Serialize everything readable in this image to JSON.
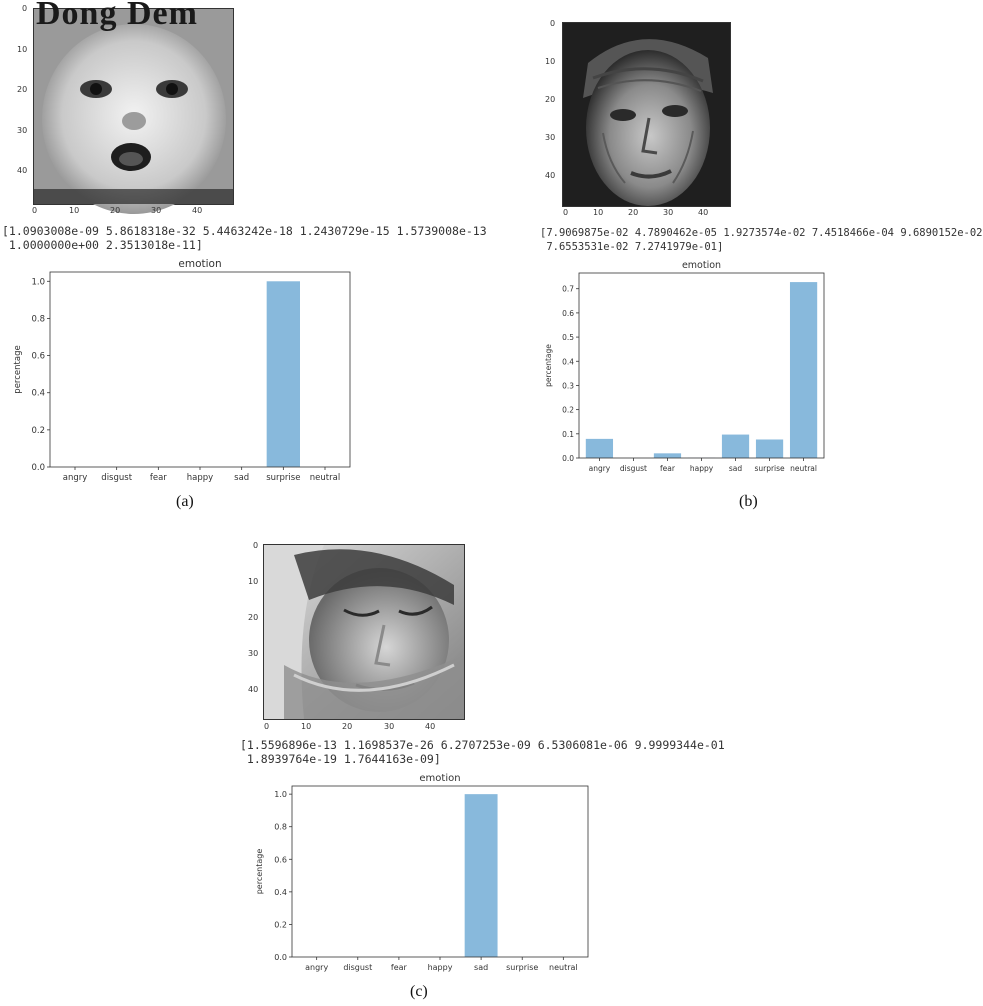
{
  "panels": [
    {
      "caption": "(a)",
      "image_watermark": "Dong Dem",
      "image_x_ticks": [
        "0",
        "10",
        "20",
        "30",
        "40"
      ],
      "image_y_ticks": [
        "0",
        "10",
        "20",
        "30",
        "40"
      ],
      "probabilities_text": [
        "[1.0903008e-09 5.8618318e-32 5.4463242e-18 1.2430729e-15 1.5739008e-13",
        " 1.0000000e+00 2.3513018e-11]"
      ]
    },
    {
      "caption": "(b)",
      "image_x_ticks": [
        "0",
        "10",
        "20",
        "30",
        "40"
      ],
      "image_y_ticks": [
        "0",
        "10",
        "20",
        "30",
        "40"
      ],
      "probabilities_text": [
        "[7.9069875e-02 4.7890462e-05 1.9273574e-02 7.4518466e-04 9.6890152e-02",
        " 7.6553531e-02 7.2741979e-01]"
      ]
    },
    {
      "caption": "(c)",
      "image_x_ticks": [
        "0",
        "10",
        "20",
        "30",
        "40"
      ],
      "image_y_ticks": [
        "0",
        "10",
        "20",
        "30",
        "40"
      ],
      "probabilities_text": [
        "[1.5596896e-13 1.1698537e-26 6.2707253e-09 6.5306081e-06 9.9999344e-01",
        " 1.8939764e-19 1.7644163e-09]"
      ]
    }
  ],
  "chart_data": [
    {
      "type": "bar",
      "title": "emotion",
      "ylabel": "percentage",
      "xlabel": "",
      "categories": [
        "angry",
        "disgust",
        "fear",
        "happy",
        "sad",
        "surprise",
        "neutral"
      ],
      "values": [
        1.0903008e-09,
        5.8618318e-32,
        5.4463242e-18,
        1.2430729e-15,
        1.5739008e-13,
        1.0,
        2.3513018e-11
      ],
      "ylim": [
        0,
        1.05
      ],
      "yticks": [
        "0.0",
        "0.2",
        "0.4",
        "0.6",
        "0.8",
        "1.0"
      ],
      "bar_color": "#88b9dc"
    },
    {
      "type": "bar",
      "title": "emotion",
      "ylabel": "percentage",
      "xlabel": "",
      "categories": [
        "angry",
        "disgust",
        "fear",
        "happy",
        "sad",
        "surprise",
        "neutral"
      ],
      "values": [
        0.079069875,
        4.7890462e-05,
        0.019273574,
        0.00074518466,
        0.096890152,
        0.076553531,
        0.72741979
      ],
      "ylim": [
        0,
        0.765
      ],
      "yticks": [
        "0.0",
        "0.1",
        "0.2",
        "0.3",
        "0.4",
        "0.5",
        "0.6",
        "0.7"
      ],
      "bar_color": "#88b9dc"
    },
    {
      "type": "bar",
      "title": "emotion",
      "ylabel": "percentage",
      "xlabel": "",
      "categories": [
        "angry",
        "disgust",
        "fear",
        "happy",
        "sad",
        "surprise",
        "neutral"
      ],
      "values": [
        1.5596896e-13,
        1.1698537e-26,
        6.2707253e-09,
        6.5306081e-06,
        0.99999344,
        1.8939764e-19,
        1.7644163e-09
      ],
      "ylim": [
        0,
        1.05
      ],
      "yticks": [
        "0.0",
        "0.2",
        "0.4",
        "0.6",
        "0.8",
        "1.0"
      ],
      "bar_color": "#88b9dc"
    }
  ]
}
